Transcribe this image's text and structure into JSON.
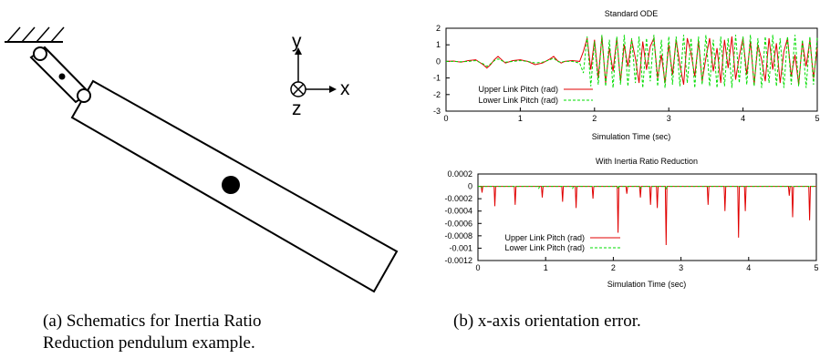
{
  "schematic": {
    "axis_labels": {
      "y": "y",
      "x": "x",
      "z": "z"
    }
  },
  "captions": {
    "a_line1": "(a) Schematics for Inertia Ratio",
    "a_line2": "Reduction pendulum example.",
    "b": "(b) x-axis orientation error."
  },
  "colors": {
    "upper": "#e00000",
    "lower": "#00dd00"
  },
  "chart_data": [
    {
      "type": "line",
      "title": "Standard ODE",
      "xlabel": "Simulation Time (sec)",
      "ylabel": "",
      "xlim": [
        0,
        5
      ],
      "ylim": [
        -3,
        2
      ],
      "xticks": [
        "0",
        "1",
        "2",
        "3",
        "4",
        "5"
      ],
      "yticks": [
        "2",
        "1",
        "0",
        "-1",
        "-2",
        "-3"
      ],
      "grid": false,
      "legend_position": "bottom-left",
      "series": [
        {
          "name": "Upper Link Pitch (rad)",
          "color": "#e00000",
          "style": "solid",
          "x": [
            0,
            0.1,
            0.2,
            0.3,
            0.4,
            0.5,
            0.55,
            0.6,
            0.65,
            0.7,
            0.75,
            0.8,
            0.9,
            1.0,
            1.1,
            1.2,
            1.3,
            1.4,
            1.45,
            1.5,
            1.55,
            1.6,
            1.7,
            1.8,
            1.85,
            1.9,
            1.95,
            2.0,
            2.05,
            2.1,
            2.15,
            2.2,
            2.25,
            2.3,
            2.35,
            2.4,
            2.45,
            2.5,
            2.55,
            2.6,
            2.65,
            2.7,
            2.75,
            2.8,
            2.85,
            2.9,
            2.95,
            3.0,
            3.05,
            3.1,
            3.15,
            3.2,
            3.25,
            3.3,
            3.35,
            3.4,
            3.45,
            3.5,
            3.55,
            3.6,
            3.65,
            3.7,
            3.75,
            3.8,
            3.85,
            3.9,
            3.95,
            4.0,
            4.05,
            4.1,
            4.15,
            4.2,
            4.25,
            4.3,
            4.35,
            4.4,
            4.45,
            4.5,
            4.55,
            4.6,
            4.65,
            4.7,
            4.75,
            4.8,
            4.85,
            4.9,
            4.95,
            5.0
          ],
          "y": [
            0,
            0.02,
            -0.05,
            0.05,
            0.1,
            -0.2,
            -0.4,
            -0.2,
            0.1,
            0.3,
            0.1,
            -0.1,
            0.05,
            0.1,
            0.0,
            -0.2,
            -0.1,
            0.15,
            0.3,
            0.05,
            -0.1,
            0.0,
            0.05,
            0.0,
            0.6,
            1.4,
            -0.5,
            1.3,
            -1.0,
            1.5,
            -1.3,
            0.8,
            -0.6,
            1.4,
            -1.2,
            1.0,
            -0.3,
            1.3,
            0.2,
            -1.3,
            1.2,
            -0.5,
            0.9,
            1.4,
            -1.0,
            0.4,
            -1.3,
            1.0,
            -0.8,
            1.3,
            -0.2,
            -1.4,
            1.4,
            0.5,
            -0.9,
            1.2,
            -1.2,
            0.2,
            1.4,
            -0.6,
            0.8,
            -1.3,
            1.3,
            -0.4,
            1.5,
            -1.1,
            0.3,
            1.4,
            -0.8,
            1.2,
            -1.4,
            1.0,
            0.1,
            -1.2,
            1.4,
            -0.5,
            1.1,
            -1.3,
            0.6,
            1.4,
            -0.9,
            0.4,
            -1.4,
            1.2,
            -0.3,
            1.3,
            -1.0,
            0.8
          ]
        },
        {
          "name": "Lower Link Pitch (rad)",
          "color": "#00dd00",
          "style": "dashed",
          "x": [
            0,
            0.1,
            0.2,
            0.3,
            0.4,
            0.5,
            0.55,
            0.6,
            0.65,
            0.7,
            0.75,
            0.8,
            0.9,
            1.0,
            1.1,
            1.2,
            1.3,
            1.4,
            1.45,
            1.5,
            1.55,
            1.6,
            1.7,
            1.8,
            1.85,
            1.9,
            1.95,
            2.0,
            2.05,
            2.1,
            2.15,
            2.2,
            2.25,
            2.3,
            2.35,
            2.4,
            2.45,
            2.5,
            2.55,
            2.6,
            2.65,
            2.7,
            2.75,
            2.8,
            2.85,
            2.9,
            2.95,
            3.0,
            3.05,
            3.1,
            3.15,
            3.2,
            3.25,
            3.3,
            3.35,
            3.4,
            3.45,
            3.5,
            3.55,
            3.6,
            3.65,
            3.7,
            3.75,
            3.8,
            3.85,
            3.9,
            3.95,
            4.0,
            4.05,
            4.1,
            4.15,
            4.2,
            4.25,
            4.3,
            4.35,
            4.4,
            4.45,
            4.5,
            4.55,
            4.6,
            4.65,
            4.7,
            4.75,
            4.8,
            4.85,
            4.9,
            4.95,
            5.0
          ],
          "y": [
            0,
            0.0,
            -0.02,
            0.0,
            0.05,
            -0.15,
            -0.3,
            -0.15,
            0.05,
            0.15,
            0.05,
            -0.05,
            0.0,
            0.05,
            0.0,
            -0.1,
            -0.05,
            0.1,
            0.2,
            0.0,
            -0.05,
            0.0,
            0.0,
            -0.1,
            -0.7,
            1.5,
            -1.5,
            1.2,
            -1.4,
            1.6,
            -1.5,
            1.3,
            -1.6,
            1.5,
            -1.4,
            1.6,
            -1.5,
            1.4,
            -1.3,
            1.5,
            -1.6,
            1.4,
            -1.2,
            1.6,
            -1.5,
            1.3,
            -1.6,
            1.5,
            -1.4,
            1.5,
            -1.5,
            1.6,
            -1.3,
            1.4,
            -1.6,
            1.5,
            -1.4,
            1.6,
            -1.5,
            1.3,
            -1.6,
            1.5,
            -1.5,
            1.4,
            -1.6,
            1.6,
            -1.3,
            1.5,
            -1.4,
            1.6,
            -1.5,
            1.4,
            -1.6,
            1.5,
            -1.3,
            1.6,
            -1.5,
            1.4,
            -1.6,
            1.5,
            -1.4,
            1.6,
            -1.5,
            1.3,
            -1.6,
            1.5,
            -1.4,
            1.5
          ]
        }
      ]
    },
    {
      "type": "line",
      "title": "With Inertia Ratio Reduction",
      "xlabel": "Simulation Time (sec)",
      "ylabel": "",
      "xlim": [
        0,
        5
      ],
      "ylim": [
        -0.0012,
        0.0002
      ],
      "xticks": [
        "0",
        "1",
        "2",
        "3",
        "4",
        "5"
      ],
      "yticks": [
        "0.0002",
        "0",
        "-0.0002",
        "-0.0004",
        "-0.0006",
        "-0.0008",
        "-0.001",
        "-0.0012"
      ],
      "grid": false,
      "legend_position": "bottom-left",
      "series": [
        {
          "name": "Upper Link Pitch (rad)",
          "color": "#e00000",
          "style": "solid",
          "spike_x": [
            0.06,
            0.25,
            0.55,
            0.95,
            1.25,
            1.45,
            1.7,
            2.07,
            2.2,
            2.4,
            2.55,
            2.65,
            2.78,
            3.4,
            3.65,
            3.95,
            3.85,
            4.6,
            4.65,
            4.9
          ],
          "spike_y": [
            -0.0001,
            -0.00032,
            -0.0003,
            -0.00018,
            -0.00025,
            -0.00035,
            -0.0002,
            -0.00075,
            -0.00012,
            -0.00018,
            -0.0003,
            -0.00035,
            -0.00095,
            -0.0003,
            -0.0004,
            -0.0004,
            -0.00083,
            -0.00015,
            -0.0005,
            -0.00055
          ],
          "baseline": 0
        },
        {
          "name": "Lower Link Pitch (rad)",
          "color": "#00dd00",
          "style": "dashed",
          "spike_x": [
            0.05,
            0.9,
            1.4,
            2.07,
            2.4,
            2.78
          ],
          "spike_y": [
            -3e-05,
            -3e-05,
            -3e-05,
            -4e-05,
            -3e-05,
            -5e-05
          ],
          "baseline": 0
        }
      ]
    }
  ]
}
